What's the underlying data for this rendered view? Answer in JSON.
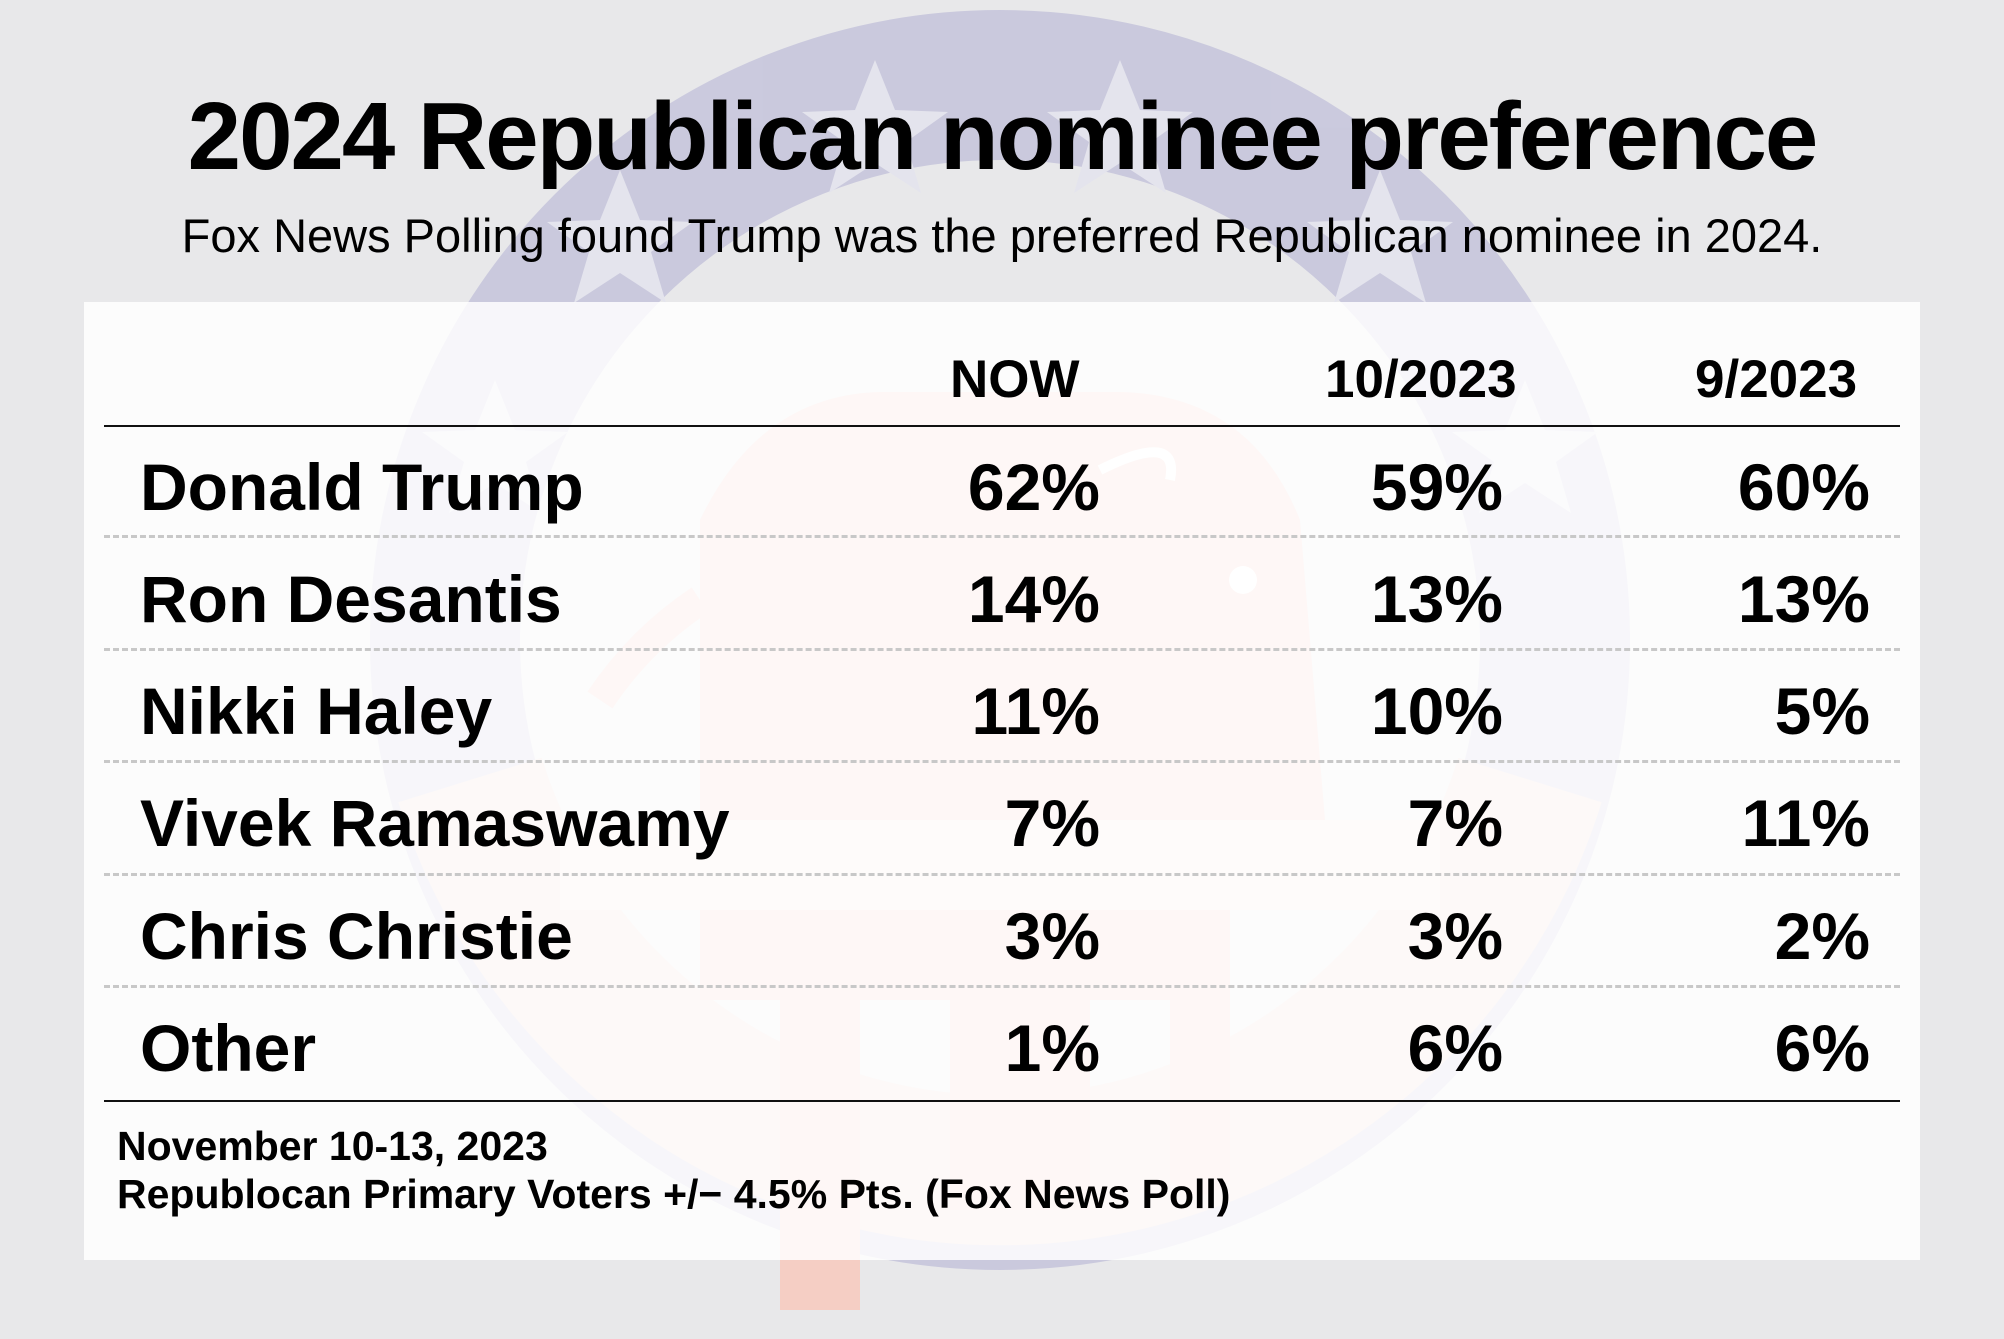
{
  "title": "2024 Republican nominee preference",
  "subtitle": "Fox News Polling found Trump was the preferred Republican nominee in 2024.",
  "chart_data": {
    "type": "table",
    "columns": [
      "NOW",
      "10/2023",
      "9/2023"
    ],
    "rows": [
      {
        "name": "Donald Trump",
        "values": [
          "62%",
          "59%",
          "60%"
        ]
      },
      {
        "name": "Ron Desantis",
        "values": [
          "14%",
          "13%",
          "13%"
        ]
      },
      {
        "name": "Nikki Haley",
        "values": [
          "11%",
          "10%",
          "5%"
        ]
      },
      {
        "name": "Vivek Ramaswamy",
        "values": [
          "7%",
          "7%",
          "11%"
        ]
      },
      {
        "name": "Chris Christie",
        "values": [
          "3%",
          "3%",
          "2%"
        ]
      },
      {
        "name": "Other",
        "values": [
          "1%",
          "6%",
          "6%"
        ]
      }
    ]
  },
  "footer": {
    "date": "November 10-13, 2023",
    "source": "Republocan Primary Voters +/− 4.5% Pts. (Fox News Poll)"
  },
  "colors": {
    "background": "#e8e8ea",
    "emblem_blue": "#c9c8dd",
    "emblem_red": "#f4c8bd",
    "text": "#000000"
  },
  "icons": [
    "republican-elephant-emblem-icon",
    "star-icon"
  ]
}
